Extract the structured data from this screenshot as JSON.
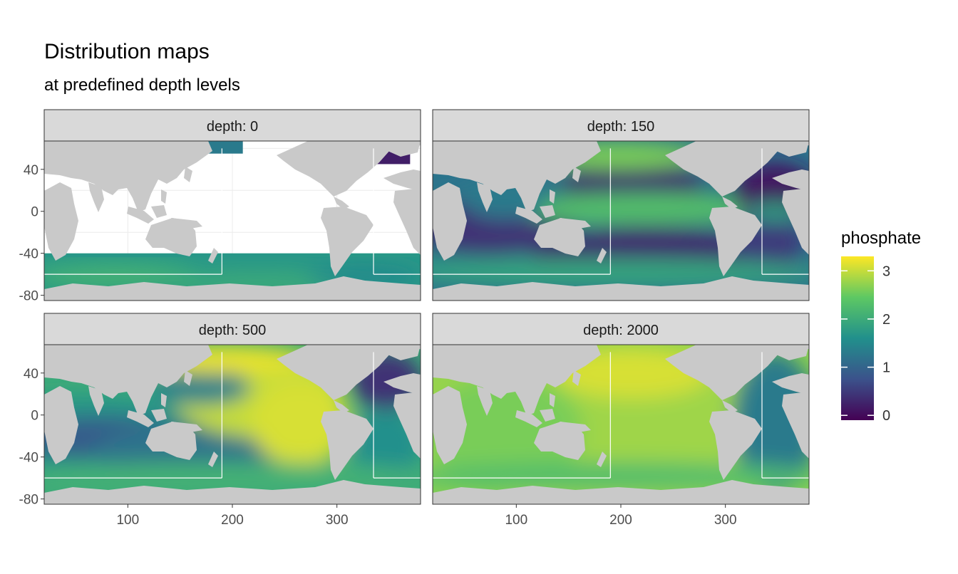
{
  "title": "Distribution maps",
  "subtitle": "at predefined depth levels",
  "colors": {
    "land": "#c9c9c9",
    "no_data": "#ffffff",
    "strip_fill": "#d9d9d9",
    "panel_border": "#333333",
    "tick_text": "#4d4d4d",
    "viridis": [
      "#440154",
      "#3b528b",
      "#21908c",
      "#5dc863",
      "#fde725"
    ]
  },
  "chart_data": {
    "type": "heatmap",
    "fill_variable": "phosphate",
    "facet_variable": "depth",
    "panels": [
      {
        "strip": "depth: 0",
        "depth": 0,
        "surface": "mostly no data north of ~40S; Southern Ocean ~1.5-2.2; N Atlantic ~0.2-0.5"
      },
      {
        "strip": "depth: 150",
        "depth": 150,
        "surface": "subtropical gyres ~0.2-0.5; equatorial Pacific and N Pacific ~2-2.6; Southern Ocean ~2"
      },
      {
        "strip": "depth: 500",
        "depth": 500,
        "surface": "N and E tropical Pacific ~3-3.3; Indian/S Pacific ~1-1.5; N Atlantic ~0.5"
      },
      {
        "strip": "depth: 2000",
        "depth": 2000,
        "surface": "Pacific and Indian ~2.6-3.2; Atlantic ~1.3"
      }
    ],
    "x_ticks": [
      "100",
      "200",
      "300"
    ],
    "y_ticks": [
      "40",
      "0",
      "-40",
      "-80"
    ],
    "xlim": [
      20,
      380
    ],
    "ylim": [
      -85,
      67
    ],
    "legend": {
      "title": "phosphate",
      "labels": [
        "3",
        "2",
        "1",
        "0"
      ],
      "values": [
        3,
        2,
        1,
        0
      ],
      "range": [
        -0.1,
        3.3
      ],
      "placement": "right"
    }
  }
}
